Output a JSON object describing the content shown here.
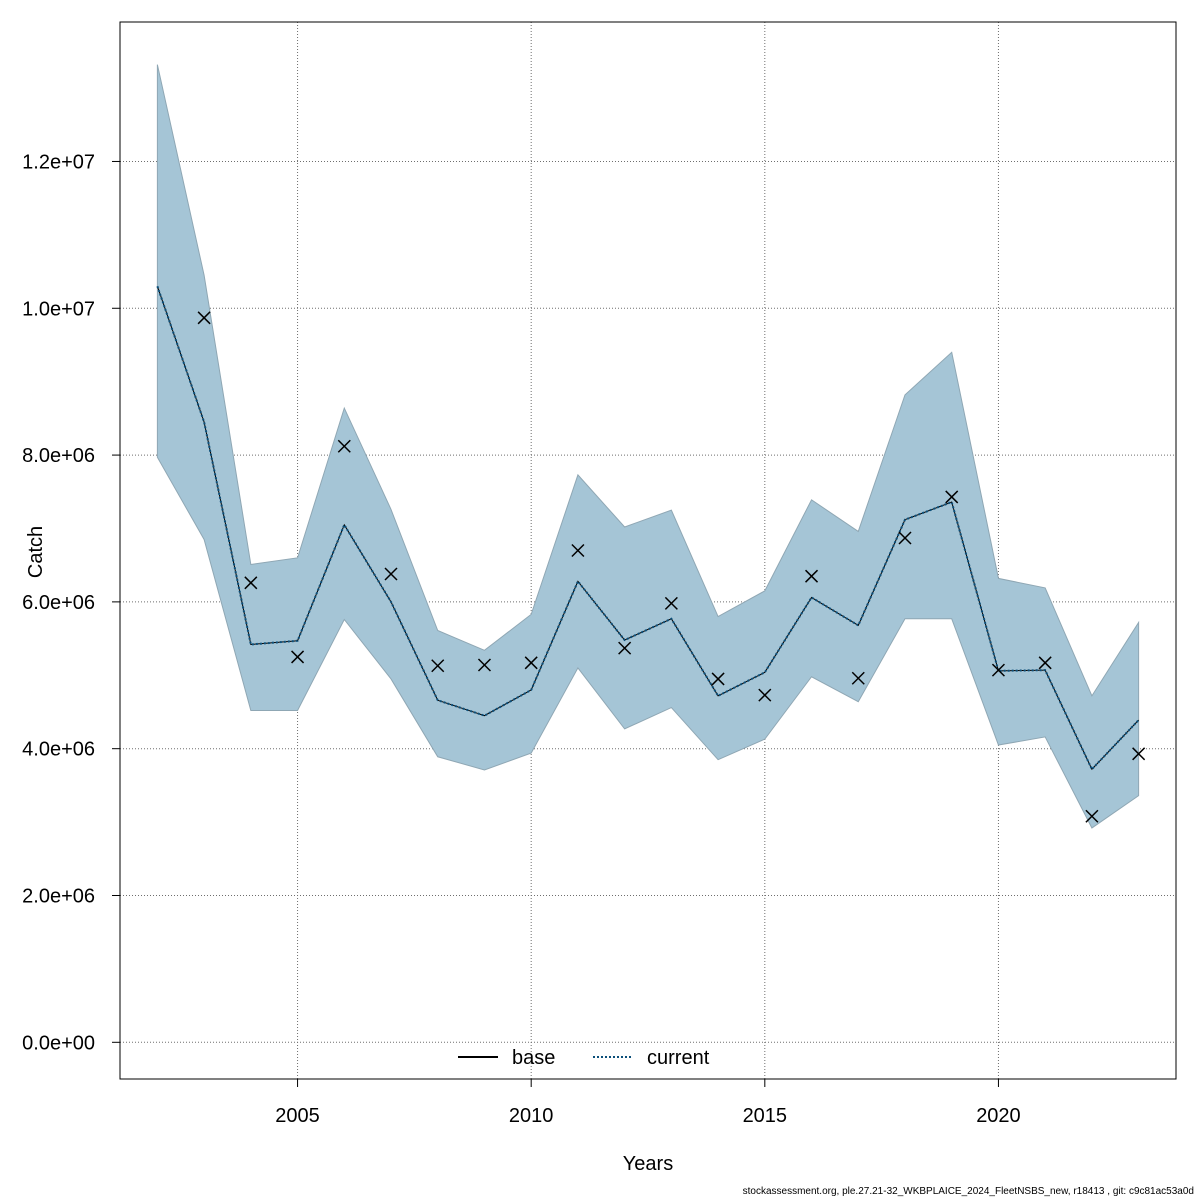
{
  "chart_data": {
    "type": "line",
    "xlabel": "Years",
    "ylabel": "Catch",
    "xlim": [
      2001.2,
      2023.8
    ],
    "ylim": [
      -500000,
      13900000
    ],
    "x_ticks": [
      2005,
      2010,
      2015,
      2020
    ],
    "y_ticks": [
      0,
      2000000,
      4000000,
      6000000,
      8000000,
      10000000,
      12000000
    ],
    "y_tick_labels": [
      "0.0e+00",
      "2.0e+06",
      "4.0e+06",
      "6.0e+06",
      "8.0e+06",
      "1.0e+07",
      "1.2e+07"
    ],
    "grid": true,
    "legend_position": "bottom",
    "legend": [
      {
        "label": "base",
        "style": "solid",
        "color": "#000000"
      },
      {
        "label": "current",
        "style": "dotted",
        "color": "#0b4f7a"
      }
    ],
    "band_color": "#a5c5d6",
    "years": [
      2002,
      2003,
      2004,
      2005,
      2006,
      2007,
      2008,
      2009,
      2010,
      2011,
      2012,
      2013,
      2014,
      2015,
      2016,
      2017,
      2018,
      2019,
      2020,
      2021,
      2022,
      2023
    ],
    "band_lower": [
      7970000,
      6850000,
      4520000,
      4520000,
      5760000,
      4950000,
      3890000,
      3710000,
      3940000,
      5100000,
      4270000,
      4560000,
      3850000,
      4130000,
      4980000,
      4640000,
      5770000,
      5770000,
      4050000,
      4160000,
      2920000,
      3360000
    ],
    "band_upper": [
      13320000,
      10450000,
      6510000,
      6600000,
      8640000,
      7260000,
      5610000,
      5340000,
      5830000,
      7730000,
      7020000,
      7250000,
      5800000,
      6150000,
      7390000,
      6960000,
      8820000,
      9400000,
      6320000,
      6190000,
      4720000,
      5720000
    ],
    "series": [
      {
        "name": "current",
        "values": [
          10300000,
          8450000,
          5420000,
          5470000,
          7050000,
          6000000,
          4660000,
          4450000,
          4800000,
          6280000,
          5480000,
          5770000,
          4720000,
          5040000,
          6060000,
          5680000,
          7120000,
          7360000,
          5060000,
          5070000,
          3720000,
          4390000
        ]
      },
      {
        "name": "observed",
        "values": [
          null,
          9870000,
          6260000,
          5250000,
          8120000,
          6380000,
          5130000,
          5140000,
          5170000,
          6700000,
          5370000,
          5980000,
          4950000,
          4730000,
          6350000,
          4960000,
          6870000,
          7430000,
          5070000,
          5170000,
          3080000,
          3930000
        ]
      }
    ]
  },
  "footer": {
    "note": "stockassessment.org, ple.27.21-32_WKBPLAICE_2024_FleetNSBS_new, r18413 , git: c9c81ac53a0d"
  }
}
